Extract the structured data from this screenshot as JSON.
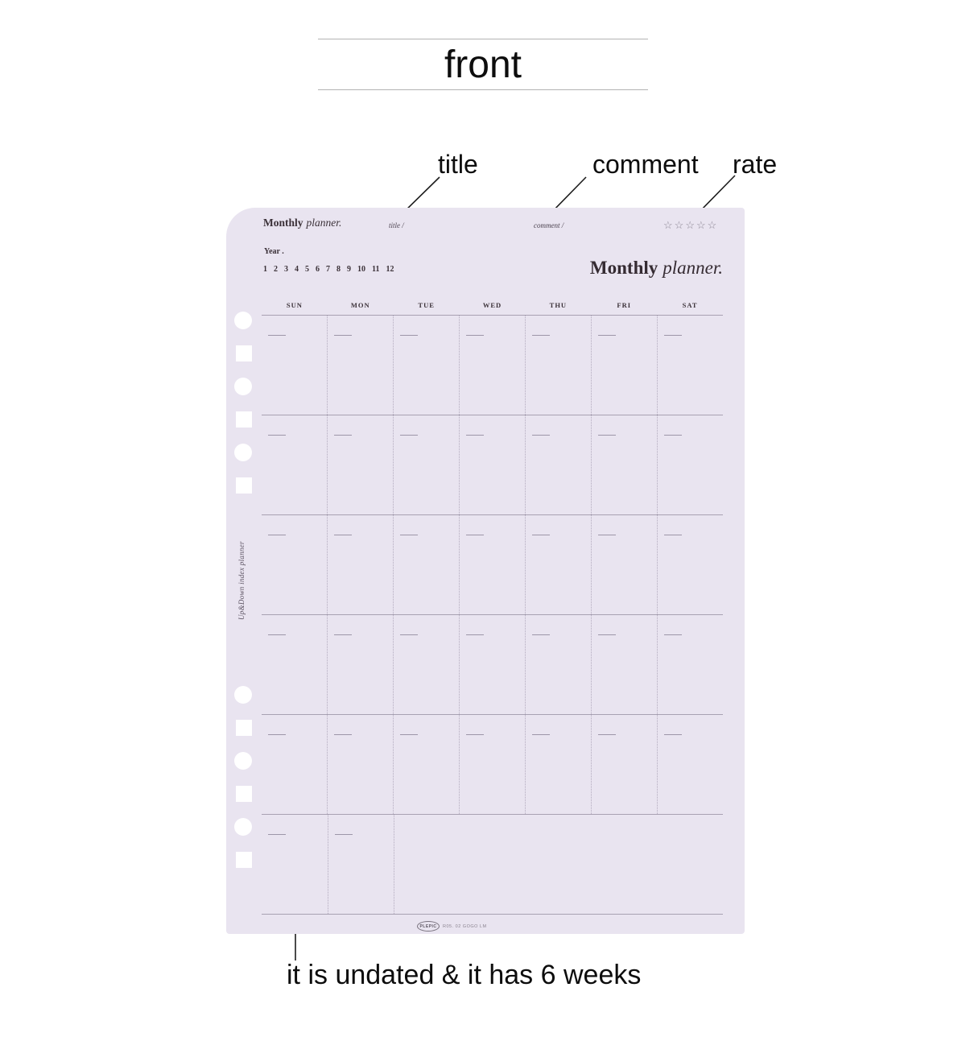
{
  "front_label": "front",
  "annotations": {
    "title": "title",
    "comment": "comment",
    "rate": "rate",
    "bottom_caption": "it is undated & it has 6 weeks"
  },
  "page": {
    "header": {
      "brand_bold": "Monthly",
      "brand_italic": "planner.",
      "title_field": "title /",
      "comment_field": "comment /",
      "rate_stars": 5,
      "star_glyph": "☆"
    },
    "year_label": "Year .",
    "months": [
      "1",
      "2",
      "3",
      "4",
      "5",
      "6",
      "7",
      "8",
      "9",
      "10",
      "11",
      "12"
    ],
    "big_title_bold": "Monthly",
    "big_title_italic": "planner.",
    "day_headers": [
      "SUN",
      "MON",
      "TUE",
      "WED",
      "THU",
      "FRI",
      "SAT"
    ],
    "weeks": 6,
    "columns": 7,
    "last_week_dash_columns": 2,
    "side_text": "Up&Down index planner",
    "footer": {
      "logo": "PLEPIC",
      "code": "R05. 02 GOGO LM"
    }
  },
  "colors": {
    "page_bg": "#e9e4f0",
    "grid_line": "#a8a1b2",
    "dotted_line": "#b3abbe",
    "date_dash": "#9d96a8",
    "planner_text": "#3b3138",
    "star": "#8d8795",
    "annotation": "#1c1c1c",
    "front_divider": "#b3b3b3"
  }
}
